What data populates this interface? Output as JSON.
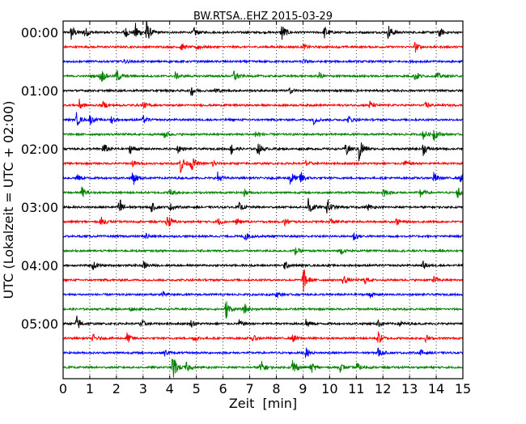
{
  "chart_data": {
    "type": "line",
    "title": "BW.RTSA..EHZ 2015-03-29",
    "xlabel": "Zeit  [min]",
    "ylabel": "UTC (Lokalzeit = UTC + 02:00)",
    "xlim": [
      0,
      15
    ],
    "x_ticks": [
      "0",
      "1",
      "2",
      "3",
      "4",
      "5",
      "6",
      "7",
      "8",
      "9",
      "10",
      "11",
      "12",
      "13",
      "14",
      "15"
    ],
    "y_ticks": [
      "00:00",
      "01:00",
      "02:00",
      "03:00",
      "04:00",
      "05:00"
    ],
    "trace_interval_minutes": 15,
    "grid": "vertical dotted",
    "colors": [
      "#000000",
      "#ff0000",
      "#0000ff",
      "#008000"
    ],
    "traces": [
      {
        "start": "00:00",
        "events": [
          [
            0.3,
            1.2
          ],
          [
            0.8,
            0.9
          ],
          [
            2.3,
            1
          ],
          [
            2.7,
            1.4
          ],
          [
            3.1,
            2
          ],
          [
            4.9,
            0.7
          ],
          [
            8.2,
            1.4
          ],
          [
            9.8,
            1
          ],
          [
            12.2,
            1.2
          ],
          [
            14.1,
            0.8
          ]
        ]
      },
      {
        "start": "00:15",
        "events": [
          [
            4.4,
            0.6
          ],
          [
            5.0,
            0.5
          ],
          [
            9,
            0.4
          ],
          [
            13.2,
            0.8
          ]
        ]
      },
      {
        "start": "00:30",
        "events": [
          [
            2.3,
            0.3
          ],
          [
            9,
            0.3
          ]
        ]
      },
      {
        "start": "00:45",
        "events": [
          [
            1.4,
            1.2
          ],
          [
            2.0,
            1
          ],
          [
            4.2,
            0.5
          ],
          [
            6.4,
            1
          ],
          [
            9.6,
            0.5
          ],
          [
            13.2,
            0.8
          ],
          [
            14,
            0.6
          ]
        ]
      },
      {
        "start": "01:00",
        "events": [
          [
            4.8,
            0.8
          ],
          [
            5.7,
            0.5
          ],
          [
            8.5,
            0.4
          ]
        ]
      },
      {
        "start": "01:15",
        "events": [
          [
            0.6,
            0.8
          ],
          [
            1.5,
            0.5
          ],
          [
            3,
            0.5
          ],
          [
            11.5,
            0.6
          ],
          [
            13.6,
            0.5
          ]
        ]
      },
      {
        "start": "01:30",
        "events": [
          [
            0.5,
            1
          ],
          [
            1.0,
            0.7
          ],
          [
            1.8,
            0.6
          ],
          [
            3.0,
            0.5
          ],
          [
            9.4,
            0.6
          ],
          [
            10.7,
            0.6
          ]
        ]
      },
      {
        "start": "01:45",
        "events": [
          [
            3.8,
            0.6
          ],
          [
            7.2,
            0.6
          ],
          [
            13.5,
            0.8
          ],
          [
            13.9,
            1
          ]
        ]
      },
      {
        "start": "02:00",
        "events": [
          [
            1.5,
            1
          ],
          [
            2.5,
            0.8
          ],
          [
            4.3,
            0.6
          ],
          [
            6.3,
            0.9
          ],
          [
            7.3,
            1
          ],
          [
            10.6,
            1.2
          ],
          [
            11.1,
            2.2
          ],
          [
            13.5,
            1
          ]
        ]
      },
      {
        "start": "02:15",
        "events": [
          [
            2.6,
            0.5
          ],
          [
            4.4,
            1.5
          ],
          [
            4.8,
            1.2
          ],
          [
            5.6,
            0.6
          ],
          [
            9.1,
            0.5
          ],
          [
            12.8,
            0.5
          ]
        ]
      },
      {
        "start": "02:30",
        "events": [
          [
            0.5,
            0.6
          ],
          [
            2.6,
            1.3
          ],
          [
            5.8,
            0.8
          ],
          [
            8.5,
            1.4
          ],
          [
            8.9,
            1
          ],
          [
            13.9,
            0.8
          ],
          [
            14.9,
            0.6
          ]
        ]
      },
      {
        "start": "02:45",
        "events": [
          [
            0.7,
            0.8
          ],
          [
            4,
            0.6
          ],
          [
            6.8,
            0.5
          ],
          [
            12,
            0.8
          ],
          [
            13.4,
            0.8
          ],
          [
            14.8,
            1.1
          ]
        ]
      },
      {
        "start": "03:00",
        "events": [
          [
            2.1,
            1.6
          ],
          [
            3.3,
            0.7
          ],
          [
            4,
            0.6
          ],
          [
            6.6,
            0.6
          ],
          [
            9.2,
            1.8
          ],
          [
            9.9,
            1.4
          ],
          [
            11.4,
            0.6
          ]
        ]
      },
      {
        "start": "03:15",
        "events": [
          [
            1.4,
            0.8
          ],
          [
            3.9,
            1.3
          ],
          [
            5.8,
            0.6
          ],
          [
            6.5,
            0.5
          ],
          [
            8.3,
            0.6
          ],
          [
            10,
            0.6
          ],
          [
            12.5,
            0.5
          ]
        ]
      },
      {
        "start": "03:30",
        "events": [
          [
            3.1,
            0.5
          ],
          [
            6.8,
            0.7
          ],
          [
            10.9,
            0.7
          ]
        ]
      },
      {
        "start": "03:45",
        "events": [
          [
            8.7,
            0.6
          ],
          [
            10.4,
            0.5
          ]
        ]
      },
      {
        "start": "04:00",
        "events": [
          [
            1.1,
            0.7
          ],
          [
            3,
            0.6
          ],
          [
            8.3,
            0.6
          ],
          [
            13.5,
            0.5
          ]
        ]
      },
      {
        "start": "04:15",
        "events": [
          [
            9,
            2
          ],
          [
            10.5,
            0.8
          ],
          [
            11.3,
            0.6
          ],
          [
            13.9,
            0.6
          ]
        ]
      },
      {
        "start": "04:30",
        "events": [
          [
            3.7,
            0.4
          ],
          [
            8,
            0.4
          ],
          [
            11.5,
            0.4
          ]
        ]
      },
      {
        "start": "04:45",
        "events": [
          [
            2.5,
            0.3
          ],
          [
            6.1,
            1.5
          ],
          [
            6.8,
            0.8
          ]
        ]
      },
      {
        "start": "05:00",
        "events": [
          [
            0.5,
            1.2
          ],
          [
            2.9,
            0.8
          ],
          [
            4.8,
            0.5
          ],
          [
            6.6,
            0.5
          ],
          [
            9.1,
            0.9
          ],
          [
            11.8,
            0.6
          ],
          [
            12.6,
            0.5
          ]
        ]
      },
      {
        "start": "05:15",
        "events": [
          [
            1.1,
            0.6
          ],
          [
            2.4,
            0.8
          ],
          [
            4.9,
            0.5
          ],
          [
            7.1,
            0.5
          ],
          [
            8.6,
            0.6
          ],
          [
            11.8,
            1.1
          ],
          [
            13.6,
            0.5
          ]
        ]
      },
      {
        "start": "05:30",
        "events": [
          [
            3.8,
            0.5
          ],
          [
            9.1,
            0.7
          ],
          [
            11.8,
            0.8
          ],
          [
            13.4,
            0.5
          ]
        ]
      },
      {
        "start": "05:45",
        "events": [
          [
            4.1,
            2.4
          ],
          [
            4.6,
            0.8
          ],
          [
            7.4,
            1.2
          ],
          [
            8.6,
            1.4
          ],
          [
            9.3,
            0.9
          ],
          [
            10.4,
            0.6
          ],
          [
            11,
            0.8
          ]
        ]
      }
    ]
  }
}
